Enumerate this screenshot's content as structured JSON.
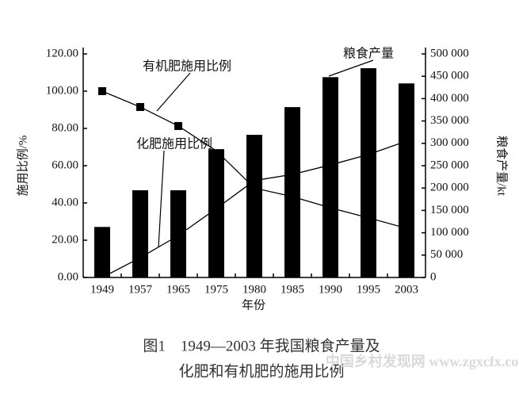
{
  "chart_data": {
    "type": "bar",
    "categories": [
      "1949",
      "1957",
      "1965",
      "1975",
      "1980",
      "1985",
      "1990",
      "1995",
      "2003"
    ],
    "ylabel": "施用比例/%",
    "y2label": "粮食产量/kt",
    "xlabel": "年份",
    "ylim": [
      0,
      120
    ],
    "yticks": [
      {
        "value": 0,
        "label": "0.00"
      },
      {
        "value": 20,
        "label": "20.00"
      },
      {
        "value": 40,
        "label": "40.00"
      },
      {
        "value": 60,
        "label": "60.00"
      },
      {
        "value": 80,
        "label": "80.00"
      },
      {
        "value": 100,
        "label": "100.00"
      },
      {
        "value": 120,
        "label": "120.00"
      }
    ],
    "y2lim": [
      0,
      500000
    ],
    "y2ticks": [
      0,
      {
        "value": 50000,
        "label": "50 000"
      },
      {
        "value": 100000,
        "label": "100 000"
      },
      {
        "value": 150000,
        "label": "150 000"
      },
      {
        "value": 200000,
        "label": "200 000"
      },
      {
        "value": 250000,
        "label": "250 000"
      },
      {
        "value": 300000,
        "label": "300 000"
      },
      {
        "value": 350000,
        "label": "350 000"
      },
      {
        "value": 400000,
        "label": "400 000"
      },
      {
        "value": 450000,
        "label": "450 000"
      },
      {
        "value": 500000,
        "label": "500 000"
      }
    ],
    "series": [
      {
        "name": "粮食产量",
        "type": "bar",
        "axis": "y2",
        "color": "#000000",
        "values": [
          113000,
          195000,
          195000,
          287000,
          319000,
          381000,
          448000,
          468000,
          434000
        ]
      },
      {
        "name": "有机肥施用比例",
        "type": "line",
        "color": "#000000",
        "markers": [
          true,
          true,
          true,
          false,
          false,
          false,
          false,
          false,
          false
        ],
        "values": [
          100,
          91.5,
          81.3,
          68,
          48,
          43.4,
          37.4,
          32,
          26.4
        ]
      },
      {
        "name": "化肥施用比例",
        "type": "line",
        "color": "#000000",
        "values": [
          0,
          10.6,
          22.5,
          37,
          52,
          55.3,
          60.4,
          66,
          73.2
        ]
      }
    ],
    "caption": [
      "图1　1949—2003 年我国粮食产量及",
      "化肥和有机肥的施用比例"
    ],
    "watermark": "中国乡村发现网 www.zgxcfx.com"
  }
}
